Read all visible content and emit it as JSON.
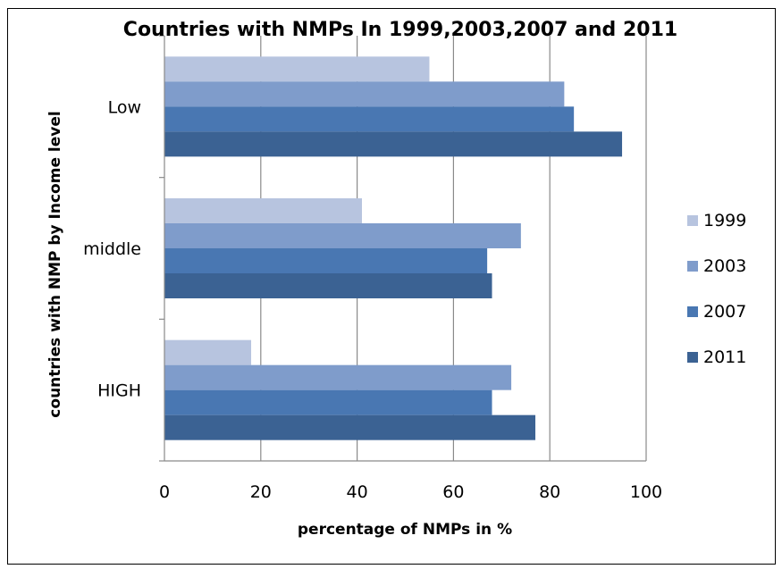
{
  "chart_data": {
    "type": "bar",
    "orientation": "horizontal",
    "title": "Countries with NMPs In 1999,2003,2007 and 2011",
    "xlabel": "percentage of NMPs in %",
    "ylabel": "countries with NMP by Income level",
    "categories": [
      "HIGH",
      "middle",
      "Low"
    ],
    "xlim": [
      0,
      100
    ],
    "xticks": [
      "0",
      "20",
      "40",
      "60",
      "80",
      "100"
    ],
    "grid": true,
    "legend_position": "right",
    "series": [
      {
        "name": "1999",
        "color": "#b7c4df",
        "values": [
          18,
          41,
          55
        ]
      },
      {
        "name": "2003",
        "color": "#7f9ccb",
        "values": [
          72,
          74,
          83
        ]
      },
      {
        "name": "2007",
        "color": "#4977b2",
        "values": [
          68,
          67,
          85
        ]
      },
      {
        "name": "2011",
        "color": "#3b6293",
        "values": [
          77,
          68,
          95
        ]
      }
    ]
  }
}
